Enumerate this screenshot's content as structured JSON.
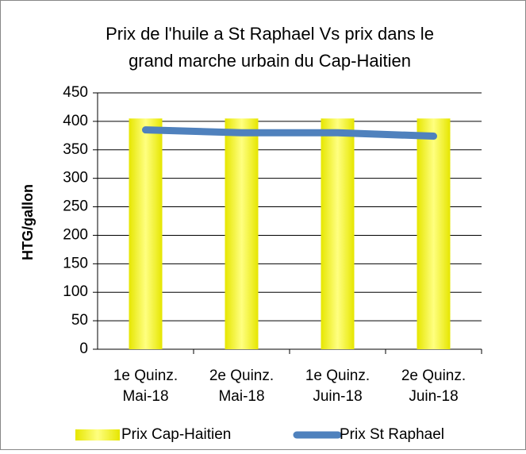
{
  "chart_data": {
    "type": "bar",
    "title": [
      "Prix de l'huile a St Raphael Vs prix dans le",
      "grand marche urbain du Cap-Haitien"
    ],
    "y_label": "HTG/gallon",
    "categories": [
      [
        "1e Quinz.",
        "Mai-18"
      ],
      [
        "2e Quinz.",
        "Mai-18"
      ],
      [
        "1e Quinz.",
        "Juin-18"
      ],
      [
        "2e Quinz.",
        "Juin-18"
      ]
    ],
    "series": [
      {
        "name": "Prix Cap-Haitien",
        "type": "bar",
        "color": "#ffff00",
        "values": [
          405,
          405,
          405,
          405
        ]
      },
      {
        "name": "Prix St Raphael",
        "type": "line",
        "color": "#4f81bd",
        "values": [
          385,
          380,
          380,
          374
        ]
      }
    ],
    "ylim": [
      0,
      450
    ],
    "yticks": [
      0,
      50,
      100,
      150,
      200,
      250,
      300,
      350,
      400,
      450
    ],
    "grid": true,
    "legend": "bottom"
  }
}
